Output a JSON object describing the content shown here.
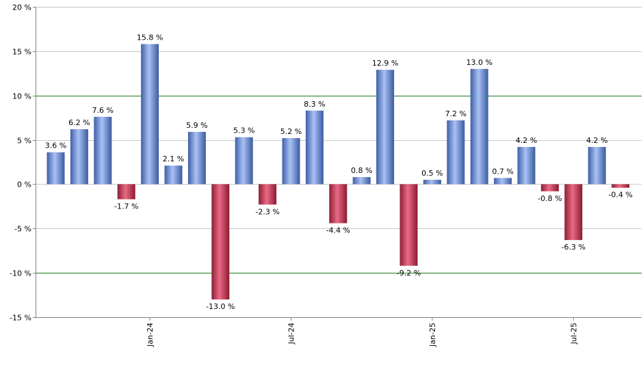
{
  "chart_data": {
    "type": "bar",
    "title": "",
    "xlabel": "",
    "ylabel": "",
    "ylim": [
      -15,
      20
    ],
    "y_ticks": [
      20,
      15,
      10,
      5,
      0,
      -5,
      -10,
      -15
    ],
    "y_tick_labels": [
      "20 %",
      "15 %",
      "10 %",
      "5 %",
      "0 %",
      "-5 %",
      "-10 %",
      "-15 %"
    ],
    "highlight_gridlines": [
      10,
      -10
    ],
    "x_tick_labels": [
      {
        "label": "Jan-24",
        "index": 4
      },
      {
        "label": "Jul-24",
        "index": 10
      },
      {
        "label": "Jan-25",
        "index": 16
      },
      {
        "label": "Jul-25",
        "index": 22
      }
    ],
    "values": [
      3.6,
      6.2,
      7.6,
      -1.7,
      15.8,
      2.1,
      5.9,
      -13.0,
      5.3,
      -2.3,
      5.2,
      8.3,
      -4.4,
      0.8,
      12.9,
      -9.2,
      0.5,
      7.2,
      13.0,
      0.7,
      4.2,
      -0.8,
      -6.3,
      4.2,
      -0.4
    ],
    "value_labels": [
      "3.6 %",
      "6.2 %",
      "7.6 %",
      "-1.7 %",
      "15.8 %",
      "2.1 %",
      "5.9 %",
      "-13.0 %",
      "5.3 %",
      "-2.3 %",
      "5.2 %",
      "8.3 %",
      "-4.4 %",
      "0.8 %",
      "12.9 %",
      "-9.2 %",
      "0.5 %",
      "7.2 %",
      "13.0 %",
      "0.7 %",
      "4.2 %",
      "-0.8 %",
      "-6.3 %",
      "4.2 %",
      "-0.4 %"
    ],
    "colors": {
      "positive": "#7A9AE6",
      "negative": "#D0304F",
      "gridline": "#c8c8c8",
      "highlight_gridline": "#1a7a1a",
      "axis": "#808080"
    }
  }
}
